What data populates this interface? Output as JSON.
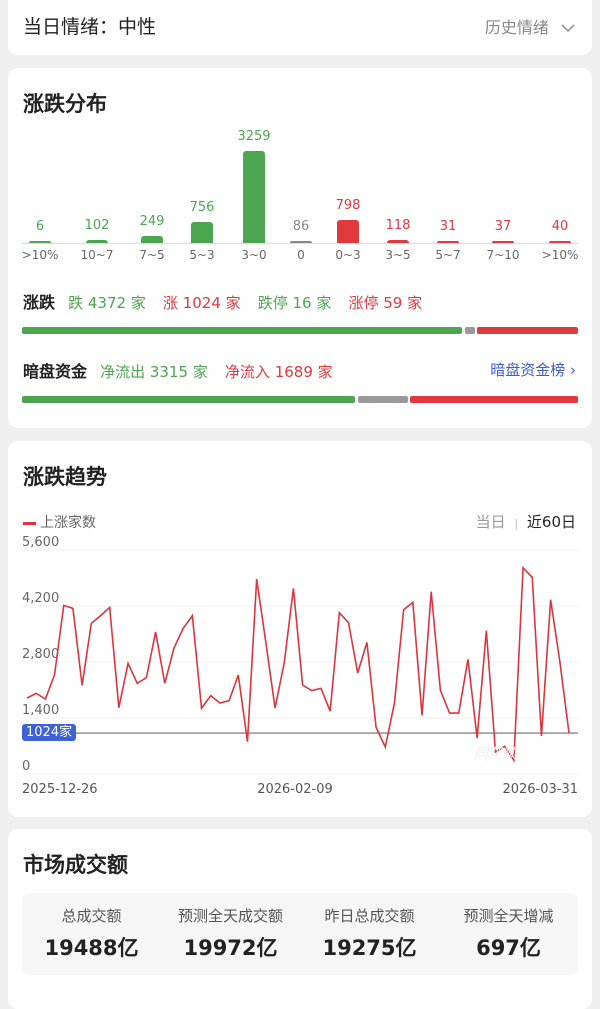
{
  "sentiment": {
    "label": "当日情绪：",
    "value": "中性",
    "history": "历史情绪",
    "history_icon": "chevron-down-icon"
  },
  "distribution": {
    "title": "涨跌分布",
    "chart_data": {
      "type": "bar",
      "categories": [
        ">10%",
        "10~7",
        "7~5",
        "5~3",
        "3~0",
        "0",
        "0~3",
        "3~5",
        "5~7",
        "7~10",
        ">10%"
      ],
      "values": [
        6,
        102,
        249,
        756,
        3259,
        86,
        798,
        118,
        31,
        37,
        40
      ],
      "colors": [
        "#4ca650",
        "#4ca650",
        "#4ca650",
        "#4ca650",
        "#4ca650",
        "#888888",
        "#e0393e",
        "#e0393e",
        "#e0393e",
        "#e0393e",
        "#e0393e"
      ]
    },
    "updown": {
      "label": "涨跌",
      "down": "跌 4372 家",
      "up": "涨 1024 家",
      "limit_down": "跌停 16 家",
      "limit_up": "涨停 59 家",
      "down_count": 4372,
      "flat_count": 86,
      "up_count": 1024
    },
    "dark": {
      "label": "暗盘资金",
      "outflow": "净流出 3315 家",
      "inflow": "净流入 1689 家",
      "link": "暗盘资金榜",
      "out_count": 3315,
      "in_count": 1689
    }
  },
  "trend": {
    "title": "涨跌趋势",
    "legend": "上涨家数",
    "tab_today": "当日",
    "tab_60": "近60日",
    "current_label": "1024家",
    "watermark": "同花顺",
    "chart_data": {
      "type": "line",
      "series": [
        {
          "name": "上涨家数",
          "color": "#d9363e",
          "values": [
            1900,
            2016,
            1875,
            2483,
            4215,
            4140,
            2216,
            3765,
            3957,
            4165,
            1658,
            2766,
            2266,
            2408,
            3549,
            2266,
            3149,
            3640,
            3957,
            1641,
            1958,
            1774,
            1833,
            2474,
            808,
            4873,
            3290,
            1649,
            2774,
            4640,
            2224,
            2083,
            2141,
            1574,
            4032,
            3782,
            2524,
            3290,
            1166,
            675,
            1774,
            4107,
            4290,
            1466,
            4557,
            2091,
            1524,
            1524,
            2866,
            900,
            3582,
            550,
            691,
            342,
            5156,
            4915,
            950,
            4357,
            2816,
            1024
          ]
        }
      ],
      "x_ticks": [
        "2025-12-26",
        "2026-02-09",
        "2026-03-31"
      ],
      "y_ticks": [
        "5,600",
        "4,200",
        "2,800",
        "1,400",
        "0"
      ],
      "ylim": [
        0,
        5600
      ],
      "reference_line": 1024,
      "grid": true
    }
  },
  "turnover": {
    "title": "市场成交额",
    "stats": [
      {
        "label": "总成交额",
        "value": "19488亿"
      },
      {
        "label": "预测全天成交额",
        "value": "19972亿"
      },
      {
        "label": "昨日总成交额",
        "value": "19275亿"
      },
      {
        "label": "预测全天增减",
        "value": "697亿"
      }
    ]
  }
}
